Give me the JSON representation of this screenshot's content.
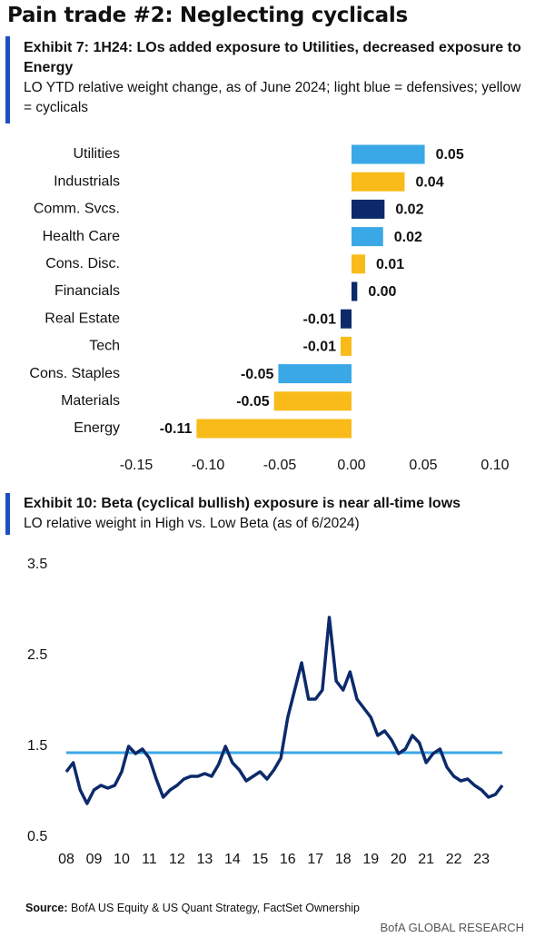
{
  "title": "Pain trade #2: Neglecting cyclicals",
  "source_label": "Source:",
  "source": "BofA US Equity & US Quant Strategy, FactSet Ownership",
  "footer": "BofA GLOBAL RESEARCH",
  "chart_data": [
    {
      "type": "bar",
      "orientation": "horizontal",
      "title": "Exhibit 7: 1H24: LOs added exposure to Utilities, decreased exposure to Energy",
      "subtitle": "LO YTD relative weight change, as of June 2024; light blue = defensives; yellow = cyclicals",
      "categories": [
        "Utilities",
        "Industrials",
        "Comm. Svcs.",
        "Health Care",
        "Cons. Disc.",
        "Financials",
        "Real Estate",
        "Tech",
        "Cons. Staples",
        "Materials",
        "Energy"
      ],
      "values": [
        0.051,
        0.037,
        0.023,
        0.022,
        0.0095,
        0.004,
        -0.0076,
        -0.0076,
        -0.051,
        -0.054,
        -0.108
      ],
      "value_labels": [
        "0.05",
        "0.04",
        "0.02",
        "0.02",
        "0.01",
        "0.00",
        "-0.01",
        "-0.01",
        "-0.05",
        "-0.05",
        "-0.11"
      ],
      "colors": [
        "#3aa8e6",
        "#f8bb1a",
        "#0c2a6b",
        "#3aa8e6",
        "#f8bb1a",
        "#0c2a6b",
        "#0c2a6b",
        "#f8bb1a",
        "#3aa8e6",
        "#f8bb1a",
        "#f8bb1a"
      ],
      "xlim": [
        -0.15,
        0.1
      ],
      "xticks": [
        -0.15,
        {
          "value": -0.1,
          "label": "-0.10"
        },
        -0.05,
        {
          "value": 0,
          "label": "0.00"
        },
        0.05,
        {
          "value": 0.1,
          "label": "0.10"
        }
      ]
    },
    {
      "type": "line",
      "title": "Exhibit 10: Beta (cyclical bullish) exposure is near all-time lows",
      "subtitle": "LO relative weight in High vs. Low Beta (as of 6/2024)",
      "color": "#0c2a6b",
      "x": [
        2008,
        2008.25,
        2008.5,
        2008.75,
        2009,
        2009.25,
        2009.5,
        2009.75,
        2010,
        2010.25,
        2010.5,
        2010.75,
        2011,
        2011.25,
        2011.5,
        2011.75,
        2012,
        2012.25,
        2012.5,
        2012.75,
        2013,
        2013.25,
        2013.5,
        2013.75,
        2014,
        2014.25,
        2014.5,
        2014.75,
        2015,
        2015.25,
        2015.5,
        2015.75,
        2016,
        2016.25,
        2016.5,
        2016.75,
        2017,
        2017.25,
        2017.5,
        2017.75,
        2018,
        2018.25,
        2018.5,
        2018.75,
        2019,
        2019.25,
        2019.5,
        2019.75,
        2020,
        2020.25,
        2020.5,
        2020.75,
        2021,
        2021.25,
        2021.5,
        2021.75,
        2022,
        2022.25,
        2022.5,
        2022.75,
        2023,
        2023.25,
        2023.5,
        2023.75
      ],
      "values": [
        1.22,
        1.32,
        1.02,
        0.87,
        1.02,
        1.07,
        1.04,
        1.07,
        1.22,
        1.5,
        1.42,
        1.47,
        1.37,
        1.14,
        0.94,
        1.02,
        1.07,
        1.14,
        1.17,
        1.17,
        1.2,
        1.17,
        1.3,
        1.5,
        1.32,
        1.24,
        1.12,
        1.17,
        1.22,
        1.14,
        1.24,
        1.37,
        1.82,
        2.12,
        2.42,
        2.02,
        2.02,
        2.12,
        2.92,
        2.22,
        2.12,
        2.32,
        2.02,
        1.92,
        1.82,
        1.62,
        1.67,
        1.57,
        1.42,
        1.47,
        1.62,
        1.54,
        1.32,
        1.42,
        1.47,
        1.27,
        1.17,
        1.12,
        1.14,
        1.07,
        1.02,
        0.94,
        0.97,
        1.07
      ],
      "reference_line": {
        "value": 1.43,
        "color": "#3aa8e6"
      },
      "xlim": [
        2008,
        2023.75
      ],
      "xticks": [
        {
          "value": 2008,
          "label": "08"
        },
        {
          "value": 2009,
          "label": "09"
        },
        {
          "value": 2010,
          "label": "10"
        },
        {
          "value": 2011,
          "label": "11"
        },
        {
          "value": 2012,
          "label": "12"
        },
        {
          "value": 2013,
          "label": "13"
        },
        {
          "value": 2014,
          "label": "14"
        },
        {
          "value": 2015,
          "label": "15"
        },
        {
          "value": 2016,
          "label": "16"
        },
        {
          "value": 2017,
          "label": "17"
        },
        {
          "value": 2018,
          "label": "18"
        },
        {
          "value": 2019,
          "label": "19"
        },
        {
          "value": 2020,
          "label": "20"
        },
        {
          "value": 2021,
          "label": "21"
        },
        {
          "value": 2022,
          "label": "22"
        },
        {
          "value": 2023,
          "label": "23"
        }
      ],
      "ylim": [
        0.5,
        3.5
      ],
      "yticks": [
        0.5,
        1.5,
        2.5,
        3.5
      ]
    }
  ]
}
